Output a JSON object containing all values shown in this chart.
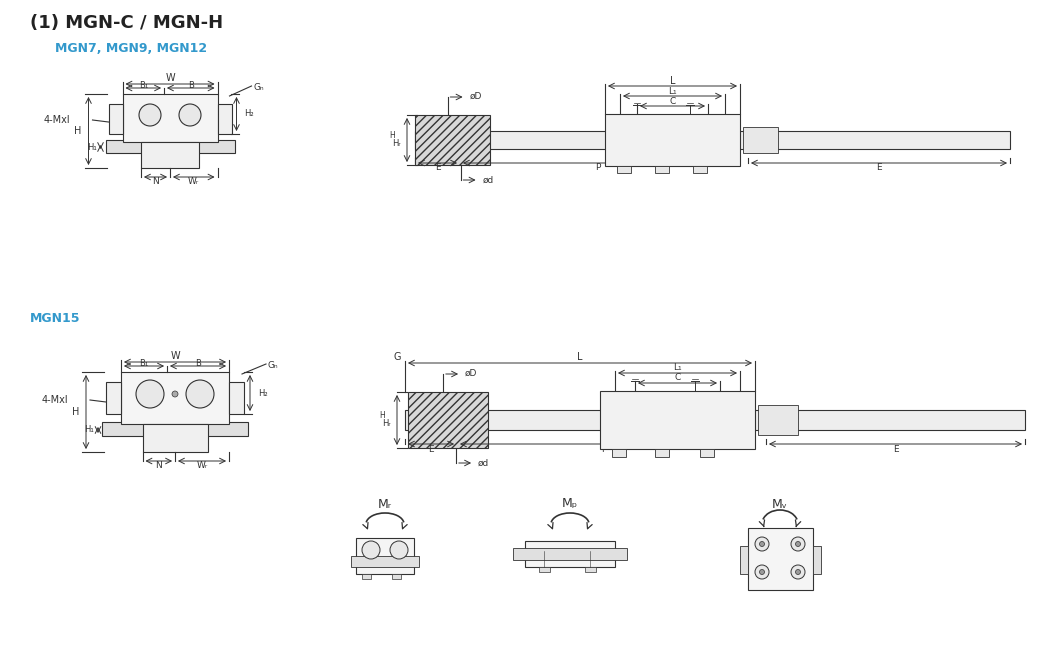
{
  "title": "(1) MGN-C / MGN-H",
  "subtitle1": "MGN7, MGN9, MGN12",
  "subtitle2": "MGN15",
  "title_color": "#222222",
  "subtitle_color": "#3399cc",
  "bg_color": "#ffffff",
  "line_color": "#333333"
}
